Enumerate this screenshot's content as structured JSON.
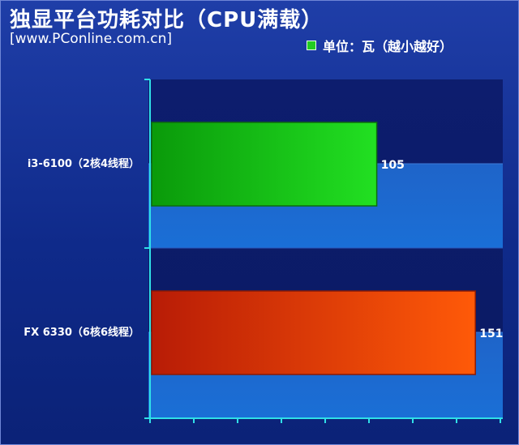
{
  "header": {
    "title": "独显平台功耗对比（CPU满载）",
    "source": "[www.PConline.com.cn]"
  },
  "legend": {
    "text": "单位：瓦（越小越好）",
    "swatch_color": "#22cc22"
  },
  "chart_data": {
    "type": "bar",
    "orientation": "horizontal",
    "categories": [
      "i3-6100（2核4线程）",
      "FX 6330（6核6线程）"
    ],
    "values": [
      105,
      151
    ],
    "value_labels": [
      "105",
      "151"
    ],
    "bar_colors": [
      "#1fc41f",
      "#e04a10"
    ],
    "xlim": [
      0,
      160
    ],
    "unit": "瓦",
    "grid": true
  }
}
